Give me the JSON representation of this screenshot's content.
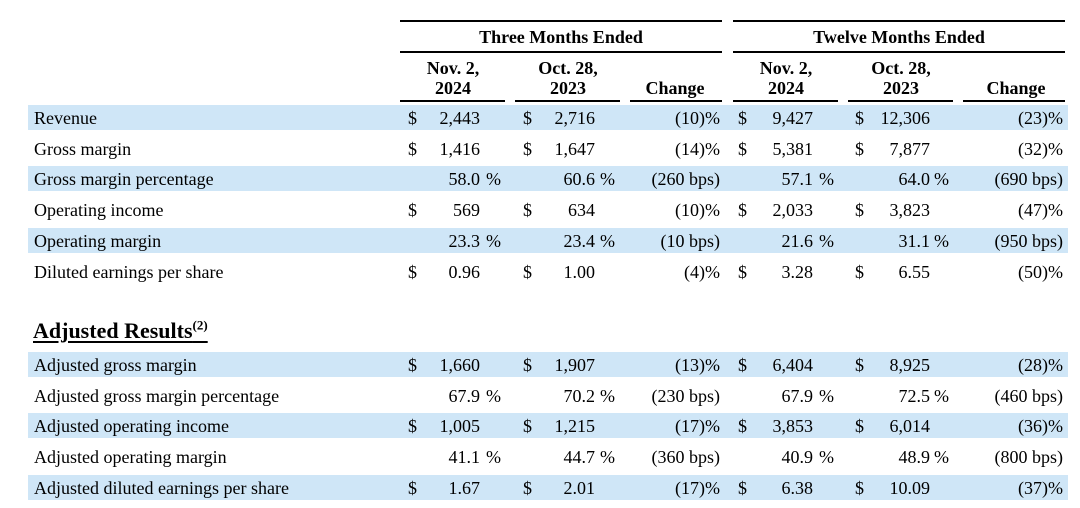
{
  "header": {
    "group1": "Three Months Ended",
    "group2": "Twelve Months Ended",
    "columns": [
      {
        "line1": "Nov. 2,",
        "line2": "2024"
      },
      {
        "line1": "Oct. 28,",
        "line2": "2023"
      },
      {
        "line1": "",
        "line2": "Change"
      },
      {
        "line1": "Nov. 2,",
        "line2": "2024"
      },
      {
        "line1": "Oct. 28,",
        "line2": "2023"
      },
      {
        "line1": "",
        "line2": "Change"
      }
    ]
  },
  "gaap_rows": [
    {
      "label": "Revenue",
      "c1_cur": "$",
      "c1": "2,443",
      "c1_pct": "",
      "c2_cur": "$",
      "c2": "2,716",
      "c2_pct": "",
      "ch1": "(10)%",
      "c3_cur": "$",
      "c3": "9,427",
      "c3_pct": "",
      "c4_cur": "$",
      "c4": "12,306",
      "c4_pct": "",
      "ch2": "(23)%"
    },
    {
      "label": "Gross margin",
      "c1_cur": "$",
      "c1": "1,416",
      "c1_pct": "",
      "c2_cur": "$",
      "c2": "1,647",
      "c2_pct": "",
      "ch1": "(14)%",
      "c3_cur": "$",
      "c3": "5,381",
      "c3_pct": "",
      "c4_cur": "$",
      "c4": "7,877",
      "c4_pct": "",
      "ch2": "(32)%"
    },
    {
      "label": "Gross margin percentage",
      "c1_cur": "",
      "c1": "58.0",
      "c1_pct": "%",
      "c2_cur": "",
      "c2": "60.6",
      "c2_pct": "%",
      "ch1": "(260 bps)",
      "c3_cur": "",
      "c3": "57.1",
      "c3_pct": "%",
      "c4_cur": "",
      "c4": "64.0",
      "c4_pct": "%",
      "ch2": "(690 bps)"
    },
    {
      "label": "Operating income",
      "c1_cur": "$",
      "c1": "569",
      "c1_pct": "",
      "c2_cur": "$",
      "c2": "634",
      "c2_pct": "",
      "ch1": "(10)%",
      "c3_cur": "$",
      "c3": "2,033",
      "c3_pct": "",
      "c4_cur": "$",
      "c4": "3,823",
      "c4_pct": "",
      "ch2": "(47)%"
    },
    {
      "label": "Operating margin",
      "c1_cur": "",
      "c1": "23.3",
      "c1_pct": "%",
      "c2_cur": "",
      "c2": "23.4",
      "c2_pct": "%",
      "ch1": "(10 bps)",
      "c3_cur": "",
      "c3": "21.6",
      "c3_pct": "%",
      "c4_cur": "",
      "c4": "31.1",
      "c4_pct": "%",
      "ch2": "(950 bps)"
    },
    {
      "label": "Diluted earnings per share",
      "c1_cur": "$",
      "c1": "0.96",
      "c1_pct": "",
      "c2_cur": "$",
      "c2": "1.00",
      "c2_pct": "",
      "ch1": "(4)%",
      "c3_cur": "$",
      "c3": "3.28",
      "c3_pct": "",
      "c4_cur": "$",
      "c4": "6.55",
      "c4_pct": "",
      "ch2": "(50)%"
    }
  ],
  "adjusted_section": {
    "title": "Adjusted Results",
    "footnote": "(2)"
  },
  "adjusted_rows": [
    {
      "label": "Adjusted gross margin",
      "c1_cur": "$",
      "c1": "1,660",
      "c1_pct": "",
      "c2_cur": "$",
      "c2": "1,907",
      "c2_pct": "",
      "ch1": "(13)%",
      "c3_cur": "$",
      "c3": "6,404",
      "c3_pct": "",
      "c4_cur": "$",
      "c4": "8,925",
      "c4_pct": "",
      "ch2": "(28)%"
    },
    {
      "label": "Adjusted gross margin percentage",
      "c1_cur": "",
      "c1": "67.9",
      "c1_pct": "%",
      "c2_cur": "",
      "c2": "70.2",
      "c2_pct": "%",
      "ch1": "(230 bps)",
      "c3_cur": "",
      "c3": "67.9",
      "c3_pct": "%",
      "c4_cur": "",
      "c4": "72.5",
      "c4_pct": "%",
      "ch2": "(460 bps)"
    },
    {
      "label": "Adjusted operating income",
      "c1_cur": "$",
      "c1": "1,005",
      "c1_pct": "",
      "c2_cur": "$",
      "c2": "1,215",
      "c2_pct": "",
      "ch1": "(17)%",
      "c3_cur": "$",
      "c3": "3,853",
      "c3_pct": "",
      "c4_cur": "$",
      "c4": "6,014",
      "c4_pct": "",
      "ch2": "(36)%"
    },
    {
      "label": "Adjusted operating margin",
      "c1_cur": "",
      "c1": "41.1",
      "c1_pct": "%",
      "c2_cur": "",
      "c2": "44.7",
      "c2_pct": "%",
      "ch1": "(360 bps)",
      "c3_cur": "",
      "c3": "40.9",
      "c3_pct": "%",
      "c4_cur": "",
      "c4": "48.9",
      "c4_pct": "%",
      "ch2": "(800 bps)"
    },
    {
      "label": "Adjusted diluted earnings per share",
      "c1_cur": "$",
      "c1": "1.67",
      "c1_pct": "",
      "c2_cur": "$",
      "c2": "2.01",
      "c2_pct": "",
      "ch1": "(17)%",
      "c3_cur": "$",
      "c3": "6.38",
      "c3_pct": "",
      "c4_cur": "$",
      "c4": "10.09",
      "c4_pct": "",
      "ch2": "(37)%"
    }
  ],
  "colors": {
    "row_shade": "#cfe6f7",
    "text": "#000000"
  }
}
